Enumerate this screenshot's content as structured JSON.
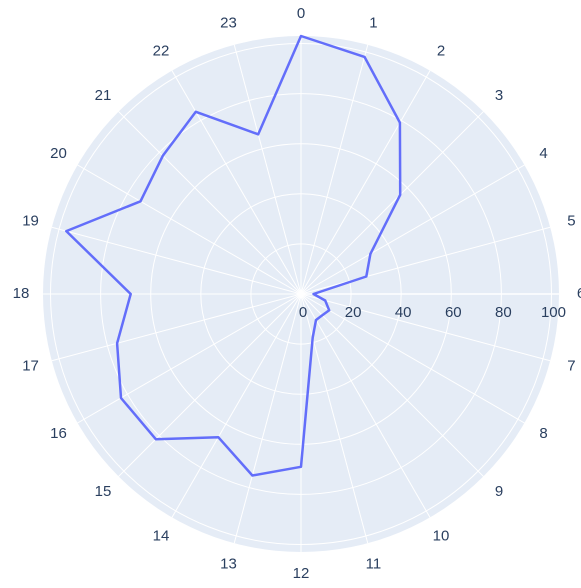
{
  "chart_data": {
    "type": "polar",
    "categories": [
      "0",
      "1",
      "2",
      "3",
      "4",
      "5",
      "6",
      "7",
      "8",
      "9",
      "10",
      "11",
      "12",
      "13",
      "14",
      "15",
      "16",
      "17",
      "18",
      "19",
      "20",
      "21",
      "22",
      "23"
    ],
    "values": [
      103,
      98,
      79,
      56,
      32,
      27,
      5,
      10,
      13,
      12,
      12,
      18,
      69,
      75,
      66,
      82,
      83,
      76,
      68,
      97,
      74,
      78,
      84,
      66
    ],
    "color": "#636efa",
    "rlim": [
      0,
      103
    ],
    "rticks": [
      0,
      20,
      40,
      60,
      80,
      100
    ],
    "direction": "clockwise",
    "rotation": 90,
    "grid": true
  }
}
